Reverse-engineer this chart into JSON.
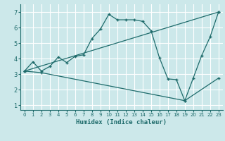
{
  "xlabel": "Humidex (Indice chaleur)",
  "bg_color": "#cce8ea",
  "line_color": "#1e6b6b",
  "grid_color": "#ffffff",
  "xlim": [
    -0.5,
    23.5
  ],
  "ylim": [
    0.7,
    7.5
  ],
  "xticks": [
    0,
    1,
    2,
    3,
    4,
    5,
    6,
    7,
    8,
    9,
    10,
    11,
    12,
    13,
    14,
    15,
    16,
    17,
    18,
    19,
    20,
    21,
    22,
    23
  ],
  "yticks": [
    1,
    2,
    3,
    4,
    5,
    6,
    7
  ],
  "line1_x": [
    0,
    1,
    2,
    3,
    4,
    5,
    6,
    7,
    8,
    9,
    10,
    11,
    12,
    13,
    14,
    15,
    16,
    17,
    18,
    19,
    20,
    21,
    22,
    23
  ],
  "line1_y": [
    3.2,
    3.8,
    3.2,
    3.5,
    4.1,
    3.75,
    4.15,
    4.25,
    5.3,
    5.9,
    6.85,
    6.5,
    6.5,
    6.5,
    6.4,
    5.8,
    4.05,
    2.7,
    2.65,
    1.3,
    2.75,
    4.2,
    5.4,
    7.0
  ],
  "line2_x": [
    0,
    23
  ],
  "line2_y": [
    3.2,
    7.0
  ],
  "line3_x": [
    0,
    2,
    19,
    23
  ],
  "line3_y": [
    3.2,
    3.1,
    1.3,
    2.75
  ],
  "xlabel_fontsize": 6.5,
  "tick_fontsize": 5.0,
  "ytick_fontsize": 6.0
}
